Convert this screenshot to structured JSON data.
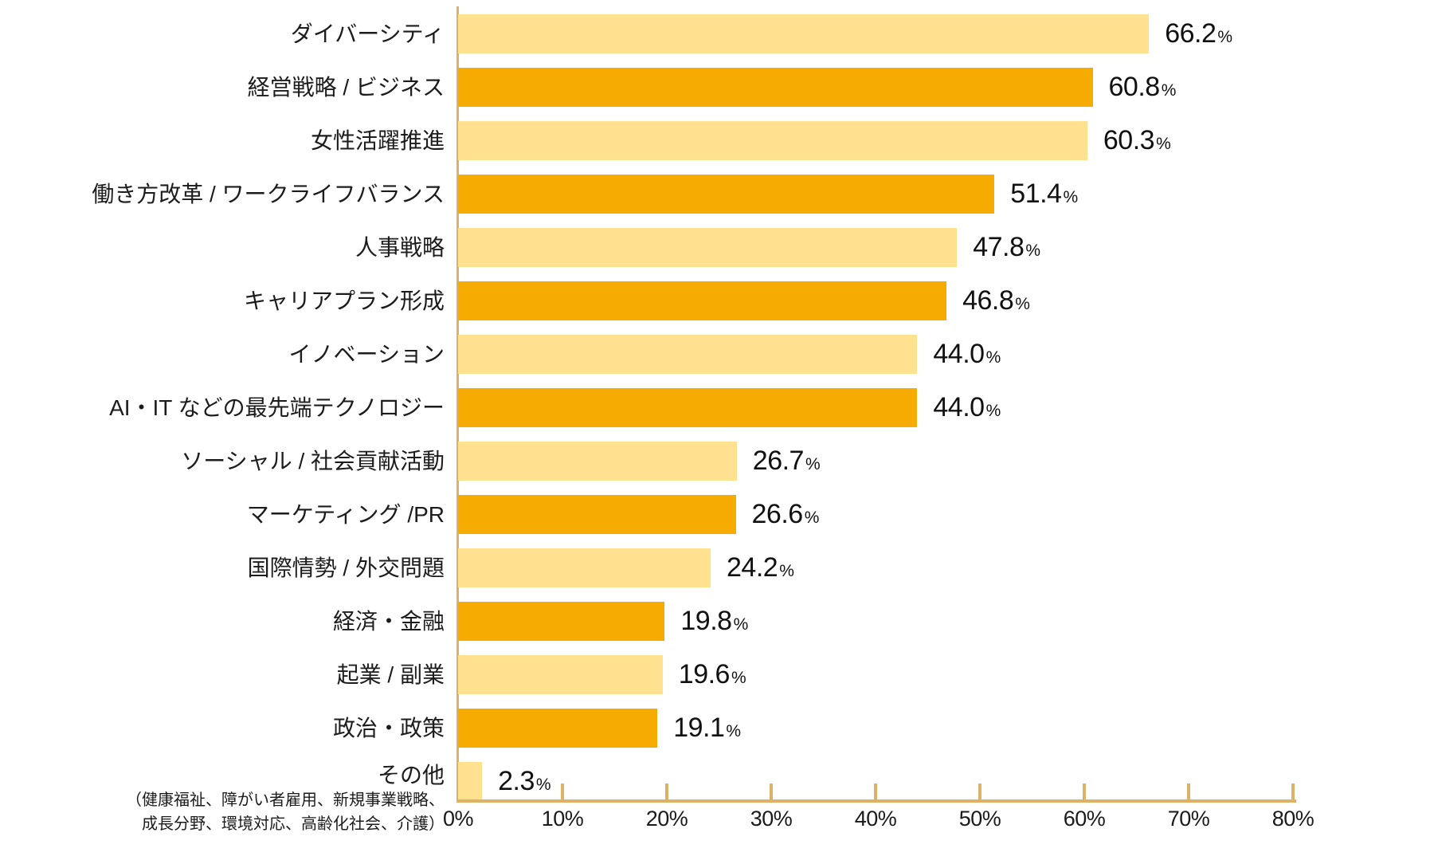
{
  "chart_data": {
    "type": "bar",
    "orientation": "horizontal",
    "title": "",
    "xlabel": "",
    "ylabel": "",
    "xlim": [
      0,
      80
    ],
    "grid": false,
    "legend": false,
    "x_ticks": [
      "0%",
      "10%",
      "20%",
      "30%",
      "40%",
      "50%",
      "60%",
      "70%",
      "80%"
    ],
    "percent_suffix": "%",
    "colors": {
      "light": "#FFE18F",
      "dark": "#F5AB00",
      "axis": "#DDB266"
    },
    "rows": [
      {
        "label": "ダイバーシティ",
        "value": 66.2,
        "display": "66.2",
        "tone": "light"
      },
      {
        "label": "経営戦略 / ビジネス",
        "value": 60.8,
        "display": "60.8",
        "tone": "dark"
      },
      {
        "label": "女性活躍推進",
        "value": 60.3,
        "display": "60.3",
        "tone": "light"
      },
      {
        "label": "働き方改革 / ワークライフバランス",
        "value": 51.4,
        "display": "51.4",
        "tone": "dark"
      },
      {
        "label": "人事戦略",
        "value": 47.8,
        "display": "47.8",
        "tone": "light"
      },
      {
        "label": "キャリアプラン形成",
        "value": 46.8,
        "display": "46.8",
        "tone": "dark"
      },
      {
        "label": "イノベーション",
        "value": 44.0,
        "display": "44.0",
        "tone": "light"
      },
      {
        "label": "AI・IT などの最先端テクノロジー",
        "value": 44.0,
        "display": "44.0",
        "tone": "dark"
      },
      {
        "label": "ソーシャル / 社会貢献活動",
        "value": 26.7,
        "display": "26.7",
        "tone": "light"
      },
      {
        "label": "マーケティング /PR",
        "value": 26.6,
        "display": "26.6",
        "tone": "dark"
      },
      {
        "label": "国際情勢 / 外交問題",
        "value": 24.2,
        "display": "24.2",
        "tone": "light"
      },
      {
        "label": "経済・金融",
        "value": 19.8,
        "display": "19.8",
        "tone": "dark"
      },
      {
        "label": "起業 / 副業",
        "value": 19.6,
        "display": "19.6",
        "tone": "light"
      },
      {
        "label": "政治・政策",
        "value": 19.1,
        "display": "19.1",
        "tone": "dark"
      },
      {
        "label": "その他",
        "value": 2.3,
        "display": "2.3",
        "tone": "light",
        "note_lines": [
          "（健康福祉、障がい者雇用、新規事業戦略、",
          "成長分野、環境対応、高齢化社会、介護）"
        ]
      }
    ]
  }
}
